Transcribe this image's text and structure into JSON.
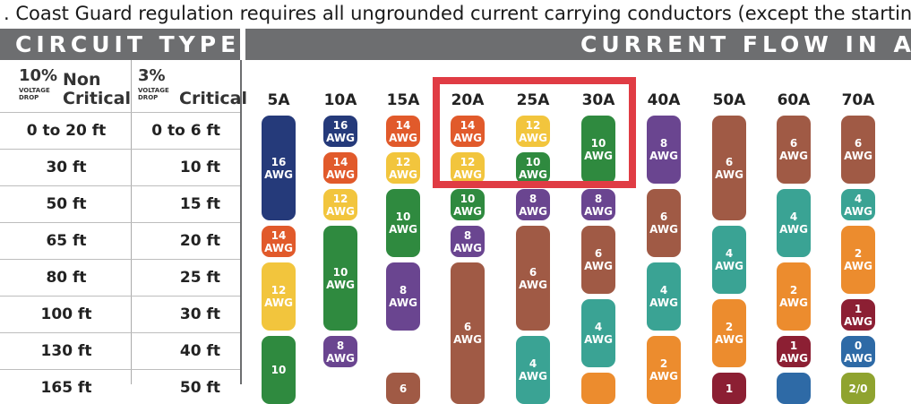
{
  "top_text": ". Coast Guard regulation requires all ungrounded current carrying conductors (except the starting circuit) to b",
  "headers": {
    "circuit_type": "CIRCUIT TYPE",
    "current_flow": "CURRENT FLOW IN AM"
  },
  "columns": {
    "non_critical": {
      "pct": "10%",
      "small1": "VOLTAGE",
      "small2": "DROP",
      "label1": "Non",
      "label2": "Critical"
    },
    "critical": {
      "pct": "3%",
      "small1": "VOLTAGE",
      "small2": "DROP",
      "label": "Critical"
    }
  },
  "amps": [
    "5A",
    "10A",
    "15A",
    "20A",
    "25A",
    "30A",
    "40A",
    "50A",
    "60A",
    "70A"
  ],
  "rows": [
    {
      "non_critical": "0 to 20 ft",
      "critical": "0 to 6 ft"
    },
    {
      "non_critical": "30 ft",
      "critical": "10 ft"
    },
    {
      "non_critical": "50 ft",
      "critical": "15 ft"
    },
    {
      "non_critical": "65 ft",
      "critical": "20 ft"
    },
    {
      "non_critical": "80 ft",
      "critical": "25 ft"
    },
    {
      "non_critical": "100 ft",
      "critical": "30 ft"
    },
    {
      "non_critical": "130 ft",
      "critical": "40 ft"
    },
    {
      "non_critical": "165 ft",
      "critical": "50 ft"
    }
  ],
  "colors": {
    "navy": "#253a7a",
    "orange_red": "#e15a2b",
    "yellow": "#f2c53d",
    "green": "#2f8a3f",
    "purple": "#6a4590",
    "brown": "#a05a45",
    "teal": "#3aa394",
    "orange": "#ec8c2e",
    "maroon": "#8c1f33",
    "blue": "#2e6aa6",
    "olive": "#8fa32f",
    "red": "#e03c44",
    "header_gray": "#6d6e70"
  },
  "pills": [
    {
      "col": 0,
      "start": 0,
      "span": 3,
      "color": "navy",
      "gauge": "16",
      "unit": "AWG"
    },
    {
      "col": 0,
      "start": 3,
      "span": 1,
      "color": "orange_red",
      "gauge": "14",
      "unit": "AWG"
    },
    {
      "col": 0,
      "start": 4,
      "span": 2,
      "color": "yellow",
      "gauge": "12",
      "unit": "AWG"
    },
    {
      "col": 0,
      "start": 6,
      "span": 2,
      "color": "green",
      "gauge": "10",
      "unit": ""
    },
    {
      "col": 1,
      "start": 0,
      "span": 1,
      "color": "navy",
      "gauge": "16",
      "unit": "AWG"
    },
    {
      "col": 1,
      "start": 1,
      "span": 1,
      "color": "orange_red",
      "gauge": "14",
      "unit": "AWG"
    },
    {
      "col": 1,
      "start": 2,
      "span": 1,
      "color": "yellow",
      "gauge": "12",
      "unit": "AWG"
    },
    {
      "col": 1,
      "start": 3,
      "span": 3,
      "color": "green",
      "gauge": "10",
      "unit": "AWG"
    },
    {
      "col": 1,
      "start": 6,
      "span": 1,
      "color": "purple",
      "gauge": "8",
      "unit": "AWG"
    },
    {
      "col": 2,
      "start": 0,
      "span": 1,
      "color": "orange_red",
      "gauge": "14",
      "unit": "AWG"
    },
    {
      "col": 2,
      "start": 1,
      "span": 1,
      "color": "yellow",
      "gauge": "12",
      "unit": "AWG"
    },
    {
      "col": 2,
      "start": 2,
      "span": 2,
      "color": "green",
      "gauge": "10",
      "unit": "AWG"
    },
    {
      "col": 2,
      "start": 4,
      "span": 2,
      "color": "purple",
      "gauge": "8",
      "unit": "AWG"
    },
    {
      "col": 2,
      "start": 7,
      "span": 1,
      "color": "brown",
      "gauge": "6",
      "unit": ""
    },
    {
      "col": 3,
      "start": 0,
      "span": 1,
      "color": "orange_red",
      "gauge": "14",
      "unit": "AWG"
    },
    {
      "col": 3,
      "start": 1,
      "span": 1,
      "color": "yellow",
      "gauge": "12",
      "unit": "AWG"
    },
    {
      "col": 3,
      "start": 2,
      "span": 1,
      "color": "green",
      "gauge": "10",
      "unit": "AWG"
    },
    {
      "col": 3,
      "start": 3,
      "span": 1,
      "color": "purple",
      "gauge": "8",
      "unit": "AWG"
    },
    {
      "col": 3,
      "start": 4,
      "span": 4,
      "color": "brown",
      "gauge": "6",
      "unit": "AWG"
    },
    {
      "col": 4,
      "start": 0,
      "span": 1,
      "color": "yellow",
      "gauge": "12",
      "unit": "AWG"
    },
    {
      "col": 4,
      "start": 1,
      "span": 1,
      "color": "green",
      "gauge": "10",
      "unit": "AWG"
    },
    {
      "col": 4,
      "start": 2,
      "span": 1,
      "color": "purple",
      "gauge": "8",
      "unit": "AWG"
    },
    {
      "col": 4,
      "start": 3,
      "span": 3,
      "color": "brown",
      "gauge": "6",
      "unit": "AWG"
    },
    {
      "col": 4,
      "start": 6,
      "span": 2,
      "color": "teal",
      "gauge": "4",
      "unit": "AWG"
    },
    {
      "col": 5,
      "start": 0,
      "span": 2,
      "color": "green",
      "gauge": "10",
      "unit": "AWG"
    },
    {
      "col": 5,
      "start": 2,
      "span": 1,
      "color": "purple",
      "gauge": "8",
      "unit": "AWG"
    },
    {
      "col": 5,
      "start": 3,
      "span": 2,
      "color": "brown",
      "gauge": "6",
      "unit": "AWG"
    },
    {
      "col": 5,
      "start": 5,
      "span": 2,
      "color": "teal",
      "gauge": "4",
      "unit": "AWG"
    },
    {
      "col": 5,
      "start": 7,
      "span": 1,
      "color": "orange",
      "gauge": "",
      "unit": ""
    },
    {
      "col": 6,
      "start": 0,
      "span": 2,
      "color": "purple",
      "gauge": "8",
      "unit": "AWG"
    },
    {
      "col": 6,
      "start": 2,
      "span": 2,
      "color": "brown",
      "gauge": "6",
      "unit": "AWG"
    },
    {
      "col": 6,
      "start": 4,
      "span": 2,
      "color": "teal",
      "gauge": "4",
      "unit": "AWG"
    },
    {
      "col": 6,
      "start": 6,
      "span": 2,
      "color": "orange",
      "gauge": "2",
      "unit": "AWG"
    },
    {
      "col": 7,
      "start": 0,
      "span": 3,
      "color": "brown",
      "gauge": "6",
      "unit": "AWG"
    },
    {
      "col": 7,
      "start": 3,
      "span": 2,
      "color": "teal",
      "gauge": "4",
      "unit": "AWG"
    },
    {
      "col": 7,
      "start": 5,
      "span": 2,
      "color": "orange",
      "gauge": "2",
      "unit": "AWG"
    },
    {
      "col": 7,
      "start": 7,
      "span": 1,
      "color": "maroon",
      "gauge": "1",
      "unit": ""
    },
    {
      "col": 8,
      "start": 0,
      "span": 2,
      "color": "brown",
      "gauge": "6",
      "unit": "AWG"
    },
    {
      "col": 8,
      "start": 2,
      "span": 2,
      "color": "teal",
      "gauge": "4",
      "unit": "AWG"
    },
    {
      "col": 8,
      "start": 4,
      "span": 2,
      "color": "orange",
      "gauge": "2",
      "unit": "AWG"
    },
    {
      "col": 8,
      "start": 6,
      "span": 1,
      "color": "maroon",
      "gauge": "1",
      "unit": "AWG"
    },
    {
      "col": 8,
      "start": 7,
      "span": 1,
      "color": "blue",
      "gauge": "",
      "unit": ""
    },
    {
      "col": 9,
      "start": 0,
      "span": 2,
      "color": "brown",
      "gauge": "6",
      "unit": "AWG"
    },
    {
      "col": 9,
      "start": 2,
      "span": 1,
      "color": "teal",
      "gauge": "4",
      "unit": "AWG"
    },
    {
      "col": 9,
      "start": 3,
      "span": 2,
      "color": "orange",
      "gauge": "2",
      "unit": "AWG"
    },
    {
      "col": 9,
      "start": 5,
      "span": 1,
      "color": "maroon",
      "gauge": "1",
      "unit": "AWG"
    },
    {
      "col": 9,
      "start": 6,
      "span": 1,
      "color": "blue",
      "gauge": "0",
      "unit": "AWG"
    },
    {
      "col": 9,
      "start": 7,
      "span": 1,
      "color": "olive",
      "gauge": "2/0",
      "unit": ""
    }
  ]
}
